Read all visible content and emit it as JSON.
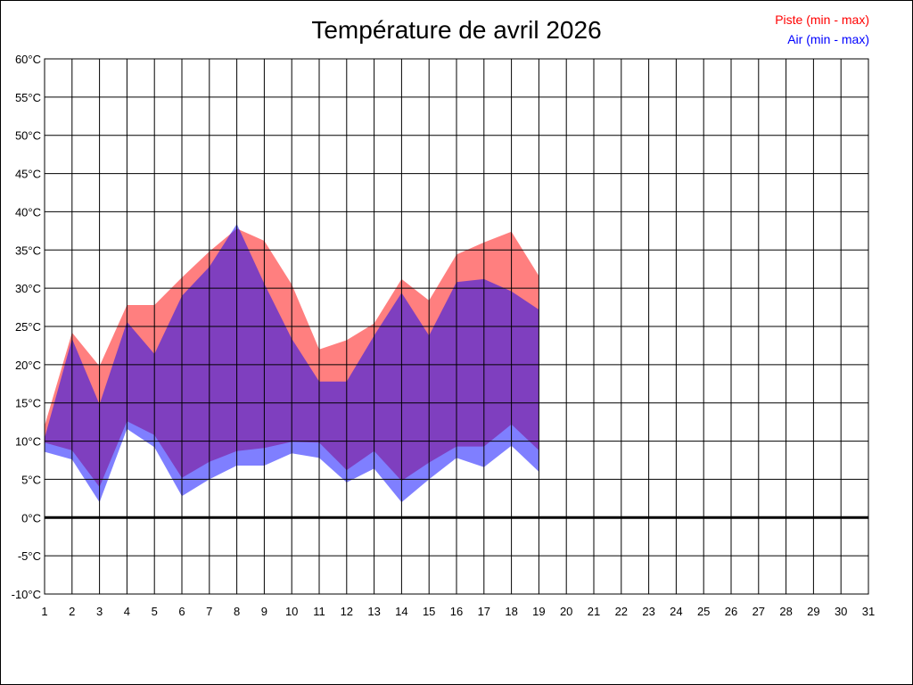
{
  "chart_data": {
    "type": "area",
    "title": "Température de avril 2026",
    "xlabel": "",
    "ylabel": "",
    "x_ticks": [
      "1",
      "2",
      "3",
      "4",
      "5",
      "6",
      "7",
      "8",
      "9",
      "10",
      "11",
      "12",
      "13",
      "14",
      "15",
      "16",
      "17",
      "18",
      "19",
      "20",
      "21",
      "22",
      "23",
      "24",
      "25",
      "26",
      "27",
      "28",
      "29",
      "30",
      "31"
    ],
    "xlim": [
      1,
      31
    ],
    "y_ticks": [
      "-10°C",
      "-5°C",
      "0°C",
      "5°C",
      "10°C",
      "15°C",
      "20°C",
      "25°C",
      "30°C",
      "35°C",
      "40°C",
      "45°C",
      "50°C",
      "55°C",
      "60°C"
    ],
    "ylim": [
      -10,
      60
    ],
    "grid": true,
    "legend_position": "top-right",
    "x": [
      1,
      2,
      3,
      4,
      5,
      6,
      7,
      8,
      9,
      10,
      11,
      12,
      13,
      14,
      15,
      16,
      17,
      18,
      19
    ],
    "series": [
      {
        "name": "Piste (min - max)",
        "color": "#ff0000",
        "min": [
          9.8,
          8.8,
          4.0,
          12.6,
          10.8,
          5.2,
          7.3,
          8.7,
          9.1,
          9.9,
          9.8,
          6.2,
          8.7,
          4.8,
          7.2,
          9.3,
          9.3,
          12.2,
          8.8
        ],
        "max": [
          12.0,
          24.2,
          19.8,
          27.8,
          27.8,
          31.4,
          34.8,
          37.8,
          36.2,
          30.5,
          22.0,
          23.2,
          25.4,
          31.2,
          28.4,
          34.4,
          36.0,
          37.4,
          31.6
        ]
      },
      {
        "name": "Air (min - max)",
        "color": "#0000ff",
        "min": [
          8.6,
          7.6,
          2.0,
          11.6,
          9.2,
          2.8,
          5.0,
          6.8,
          6.8,
          8.4,
          7.8,
          4.6,
          6.4,
          2.0,
          5.0,
          7.8,
          6.6,
          9.4,
          6.0
        ],
        "max": [
          10.4,
          23.4,
          14.8,
          25.6,
          21.4,
          29.0,
          32.8,
          38.4,
          30.6,
          23.4,
          17.8,
          17.8,
          23.8,
          29.4,
          23.8,
          30.8,
          31.2,
          29.6,
          27.2
        ]
      }
    ]
  }
}
